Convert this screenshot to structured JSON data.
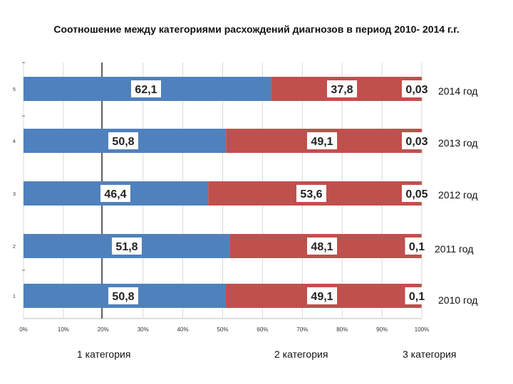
{
  "chart_data": {
    "type": "bar",
    "orientation": "horizontal",
    "stacked": "percent",
    "title": "Соотношение между категориями расхождений диагнозов  в период 2010- 2014 г.г.",
    "categories": [
      "1",
      "2",
      "3",
      "4",
      "5"
    ],
    "year_labels": [
      "2010 год",
      "2011 год",
      "2012 год",
      "2013 год",
      "2014 год"
    ],
    "series": [
      {
        "name": "1 категория",
        "color": "#4f81bd",
        "values": [
          50.8,
          51.8,
          46.4,
          50.8,
          62.1
        ],
        "labels": [
          "50,8",
          "51,8",
          "46,4",
          "50,8",
          "62,1"
        ]
      },
      {
        "name": "2 категория",
        "color": "#c0504d",
        "values": [
          49.1,
          48.1,
          53.6,
          49.1,
          37.8
        ],
        "labels": [
          "49,1",
          "48,1",
          "53,6",
          "49,1",
          "37,8"
        ]
      },
      {
        "name": "3 категория",
        "color": "#9bbb59",
        "values": [
          0.1,
          0.1,
          0.05,
          0.03,
          0.03
        ],
        "labels": [
          "0,1",
          "0,1",
          "0,05",
          "0,03",
          "0,03"
        ]
      }
    ],
    "x_ticks": [
      "0%",
      "10%",
      "20%",
      "30%",
      "40%",
      "50%",
      "60%",
      "70%",
      "80%",
      "90%",
      "100%"
    ],
    "xlim": [
      0,
      100
    ],
    "grid": true
  }
}
